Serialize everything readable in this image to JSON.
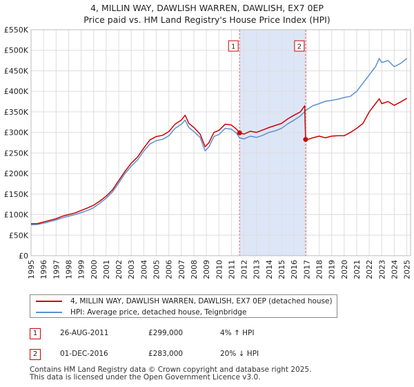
{
  "title": "4, MILLIN WAY, DAWLISH WARREN, DAWLISH, EX7 0EP",
  "subtitle": "Price paid vs. HM Land Registry's House Price Index (HPI)",
  "colors": {
    "property": "#cc0000",
    "hpi": "#5b8fd0",
    "shade": "#dde6f7",
    "vline": "#e06666"
  },
  "chart_data": {
    "type": "line",
    "title": "4, MILLIN WAY, DAWLISH WARREN, DAWLISH, EX7 0EP",
    "subtitle": "Price paid vs. HM Land Registry's House Price Index (HPI)",
    "xlabel": "",
    "ylabel": "",
    "xlim": [
      1995,
      2025.3
    ],
    "ylim": [
      0,
      550000
    ],
    "xticks": [
      1995,
      1996,
      1997,
      1998,
      1999,
      2000,
      2001,
      2002,
      2003,
      2004,
      2005,
      2006,
      2007,
      2008,
      2009,
      2010,
      2011,
      2012,
      2013,
      2014,
      2015,
      2016,
      2017,
      2018,
      2019,
      2020,
      2021,
      2022,
      2023,
      2024,
      2025
    ],
    "yticks": [
      0,
      50000,
      100000,
      150000,
      200000,
      250000,
      300000,
      350000,
      400000,
      450000,
      500000,
      550000
    ],
    "ytick_labels": [
      "£0",
      "£50K",
      "£100K",
      "£150K",
      "£200K",
      "£250K",
      "£300K",
      "£350K",
      "£400K",
      "£450K",
      "£500K",
      "£550K"
    ],
    "grid": true,
    "series": [
      {
        "name": "4, MILLIN WAY, DAWLISH WARREN, DAWLISH, EX7 0EP (detached house)",
        "color": "#cc0000",
        "x": [
          1995.0,
          1995.5,
          1996.0,
          1996.5,
          1997.0,
          1997.5,
          1998.0,
          1998.5,
          1999.0,
          1999.5,
          2000.0,
          2000.5,
          2001.0,
          2001.5,
          2002.0,
          2002.5,
          2003.0,
          2003.5,
          2004.0,
          2004.5,
          2005.0,
          2005.5,
          2006.0,
          2006.5,
          2007.0,
          2007.3,
          2007.6,
          2008.0,
          2008.5,
          2008.9,
          2009.2,
          2009.6,
          2010.0,
          2010.5,
          2011.0,
          2011.4,
          2011.65,
          2012.0,
          2012.5,
          2013.0,
          2013.5,
          2014.0,
          2014.5,
          2015.0,
          2015.5,
          2016.0,
          2016.5,
          2016.85,
          2016.92,
          2017.0,
          2017.5,
          2018.0,
          2018.5,
          2019.0,
          2019.5,
          2020.0,
          2020.5,
          2021.0,
          2021.5,
          2022.0,
          2022.5,
          2022.8,
          2023.0,
          2023.5,
          2024.0,
          2024.5,
          2025.0
        ],
        "y": [
          78000,
          78000,
          82000,
          86000,
          90000,
          96000,
          100000,
          104000,
          110000,
          116000,
          123000,
          133000,
          145000,
          160000,
          183000,
          205000,
          225000,
          240000,
          262000,
          282000,
          290000,
          293000,
          302000,
          320000,
          330000,
          342000,
          322000,
          312000,
          296000,
          265000,
          275000,
          300000,
          305000,
          320000,
          318000,
          308000,
          299000,
          296000,
          303000,
          300000,
          306000,
          312000,
          317000,
          322000,
          333000,
          342000,
          350000,
          365000,
          283000,
          282000,
          287000,
          291000,
          287000,
          291000,
          292000,
          292000,
          300000,
          310000,
          322000,
          350000,
          370000,
          382000,
          370000,
          375000,
          366000,
          374000,
          383000
        ]
      },
      {
        "name": "HPI: Average price, detached house, Teignbridge",
        "color": "#5b8fd0",
        "x": [
          1995.0,
          1995.5,
          1996.0,
          1996.5,
          1997.0,
          1997.5,
          1998.0,
          1998.5,
          1999.0,
          1999.5,
          2000.0,
          2000.5,
          2001.0,
          2001.5,
          2002.0,
          2002.5,
          2003.0,
          2003.5,
          2004.0,
          2004.5,
          2005.0,
          2005.5,
          2006.0,
          2006.5,
          2007.0,
          2007.3,
          2007.6,
          2008.0,
          2008.5,
          2008.9,
          2009.2,
          2009.6,
          2010.0,
          2010.5,
          2011.0,
          2011.4,
          2011.65,
          2012.0,
          2012.5,
          2013.0,
          2013.5,
          2014.0,
          2014.5,
          2015.0,
          2015.5,
          2016.0,
          2016.5,
          2016.92,
          2017.0,
          2017.5,
          2018.0,
          2018.5,
          2019.0,
          2019.5,
          2020.0,
          2020.5,
          2021.0,
          2021.5,
          2022.0,
          2022.5,
          2022.8,
          2023.0,
          2023.5,
          2024.0,
          2024.5,
          2025.0
        ],
        "y": [
          75000,
          76000,
          79000,
          83000,
          87000,
          92000,
          96000,
          100000,
          105000,
          110000,
          117000,
          128000,
          140000,
          155000,
          177000,
          200000,
          218000,
          233000,
          255000,
          272000,
          280000,
          283000,
          292000,
          310000,
          320000,
          330000,
          312000,
          302000,
          288000,
          255000,
          265000,
          290000,
          295000,
          310000,
          308000,
          298000,
          287000,
          284000,
          291000,
          288000,
          293000,
          300000,
          304000,
          310000,
          321000,
          330000,
          340000,
          353000,
          355000,
          365000,
          370000,
          376000,
          378000,
          381000,
          385000,
          388000,
          400000,
          420000,
          440000,
          460000,
          480000,
          470000,
          475000,
          460000,
          468000,
          480000
        ]
      }
    ],
    "annotations": [
      {
        "label": "1",
        "x": 2011.65,
        "date": "26-AUG-2011",
        "price": "£299,000",
        "value": 299000,
        "hpi": "4% ↑ HPI"
      },
      {
        "label": "2",
        "x": 2016.92,
        "date": "01-DEC-2016",
        "price": "£283,000",
        "value": 283000,
        "hpi": "20% ↓ HPI"
      }
    ],
    "shaded_region": [
      2011.65,
      2016.92
    ],
    "legend_position": "bottom"
  },
  "footer_line1": "Contains HM Land Registry data © Crown copyright and database right 2025.",
  "footer_line2": "This data is licensed under the Open Government Licence v3.0."
}
